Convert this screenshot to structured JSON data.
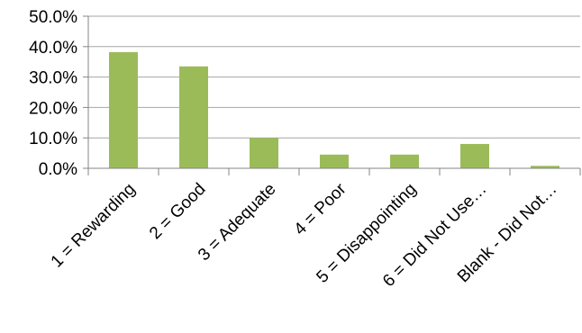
{
  "chart_data": {
    "type": "bar",
    "title": "",
    "xlabel": "",
    "ylabel": "",
    "categories": [
      "1 = Rewarding",
      "2 = Good",
      "3 =  Adequate",
      "4 = Poor",
      "5 = Disappointing",
      "6 = Did Not Use…",
      "Blank - Did Not…"
    ],
    "values": [
      38.2,
      33.5,
      10.0,
      4.5,
      4.5,
      8.0,
      0.8
    ],
    "value_format": "percent_one_decimal",
    "ylim": [
      0,
      50
    ],
    "yticks": [
      0,
      10,
      20,
      30,
      40,
      50
    ],
    "ytick_labels": [
      "0.0%",
      "10.0%",
      "20.0%",
      "30.0%",
      "40.0%",
      "50.0%"
    ],
    "grid": true,
    "legend": "none",
    "bar_color": "#9bbb59",
    "gridline_color": "#a6a6a6",
    "axis_color": "#868686"
  }
}
